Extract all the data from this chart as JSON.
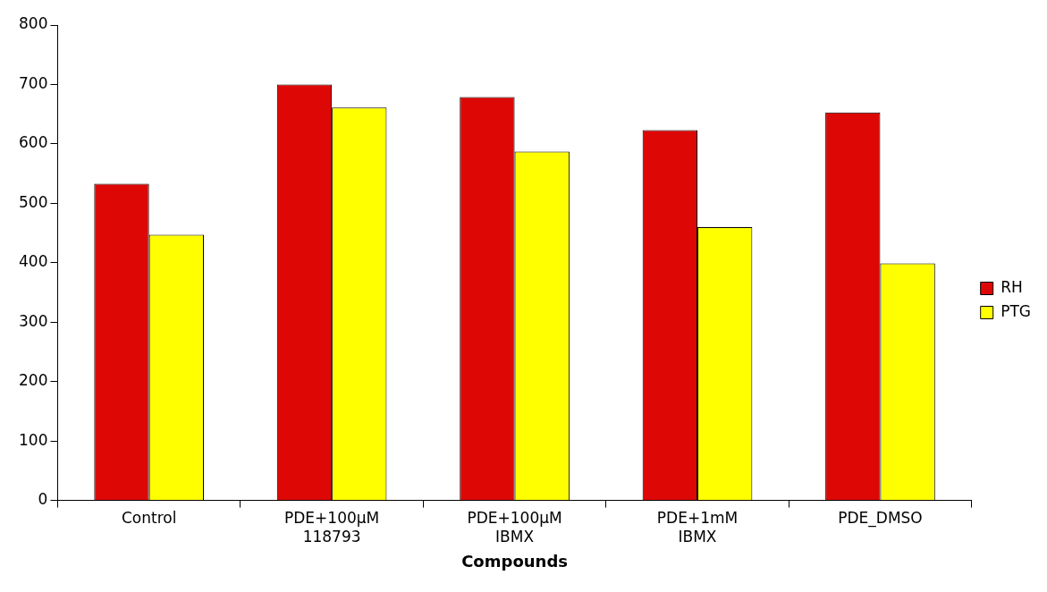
{
  "chart_data": {
    "type": "bar",
    "xlabel": "Compounds",
    "categories": [
      "Control",
      "PDE+100µM 118793",
      "PDE+100µM IBMX",
      "PDE+1mM IBMX",
      "PDE_DMSO"
    ],
    "series": [
      {
        "name": "RH",
        "color": "#dd0806",
        "values": [
          533,
          700,
          679,
          623,
          653
        ]
      },
      {
        "name": "PTG",
        "color": "#ffff00",
        "values": [
          447,
          661,
          587,
          460,
          399
        ]
      }
    ],
    "ylim": [
      0,
      800
    ],
    "yticks": [
      0,
      100,
      200,
      300,
      400,
      500,
      600,
      700,
      800
    ],
    "grid": false,
    "legend": "right"
  }
}
